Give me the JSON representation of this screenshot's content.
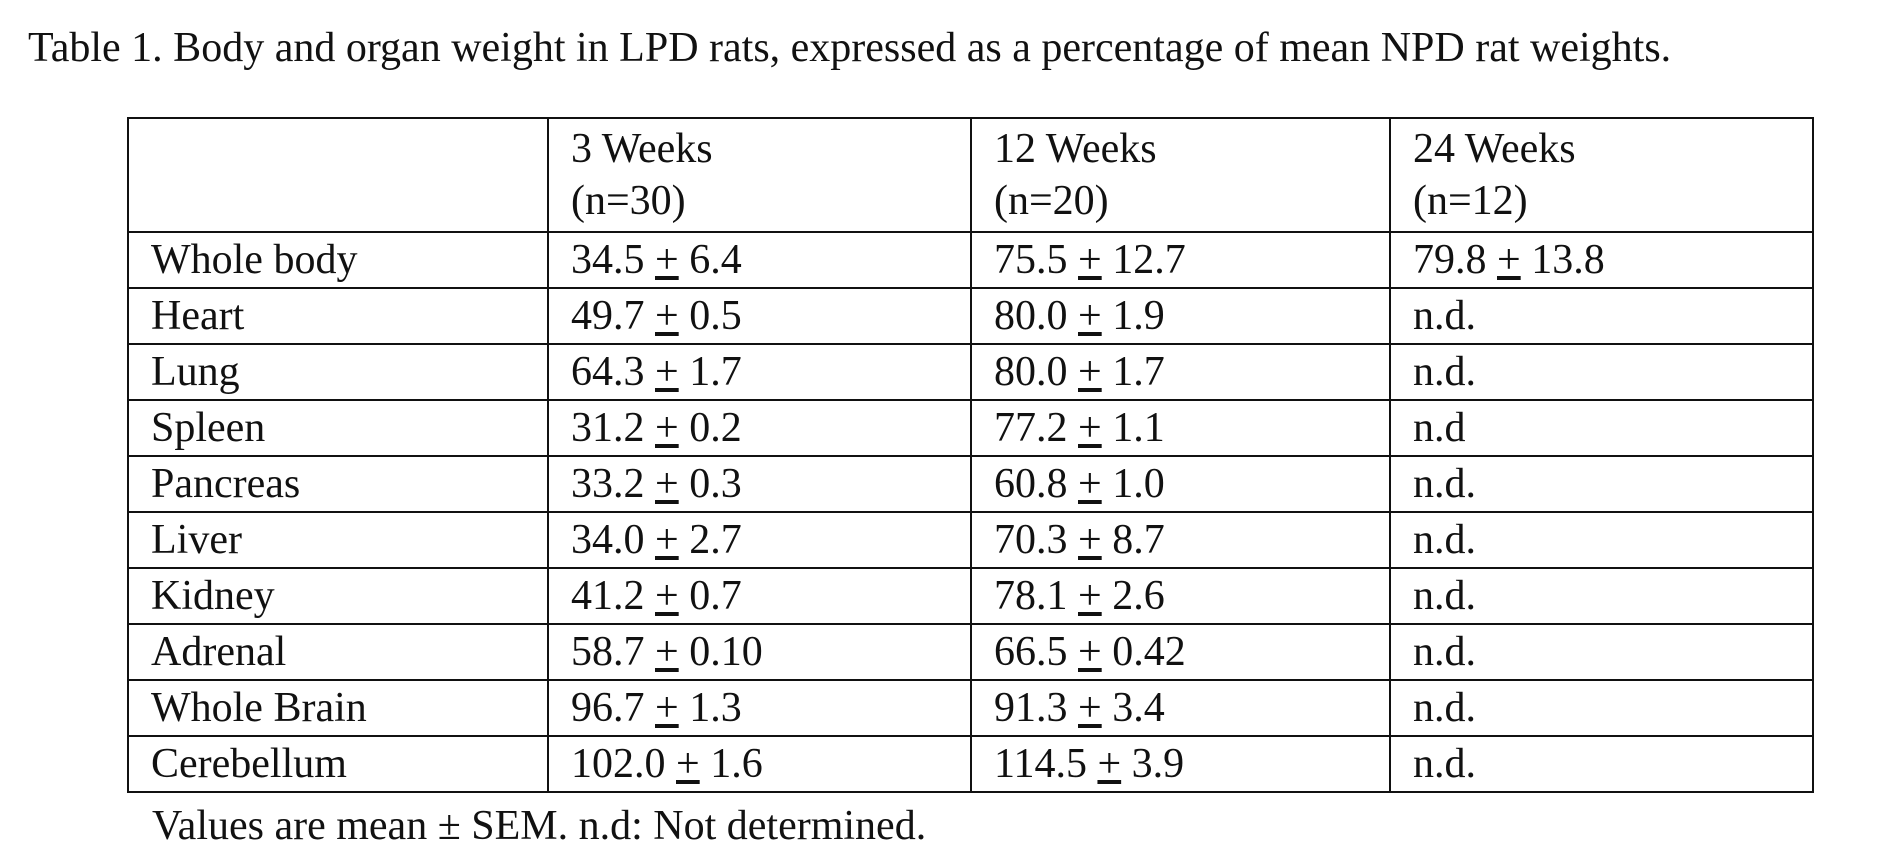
{
  "caption": "Table 1. Body and organ weight in LPD rats, expressed as a percentage of mean NPD rat weights.",
  "pm_symbol": "+",
  "columns": [
    {
      "label": "3 Weeks",
      "n": "(n=30)"
    },
    {
      "label": "12 Weeks",
      "n": "(n=20)"
    },
    {
      "label": "24 Weeks",
      "n": "(n=12)"
    }
  ],
  "rows": [
    {
      "label": "Whole body",
      "cells": [
        {
          "mean": "34.5",
          "sem": "6.4"
        },
        {
          "mean": "75.5",
          "sem": "12.7"
        },
        {
          "mean": "79.8",
          "sem": "13.8"
        }
      ]
    },
    {
      "label": "Heart",
      "cells": [
        {
          "mean": "49.7",
          "sem": "0.5"
        },
        {
          "mean": "80.0",
          "sem": "1.9"
        },
        {
          "text": "n.d."
        }
      ]
    },
    {
      "label": "Lung",
      "cells": [
        {
          "mean": "64.3",
          "sem": "1.7"
        },
        {
          "mean": "80.0",
          "sem": "1.7"
        },
        {
          "text": "n.d."
        }
      ]
    },
    {
      "label": "Spleen",
      "cells": [
        {
          "mean": "31.2",
          "sem": "0.2"
        },
        {
          "mean": "77.2",
          "sem": "1.1"
        },
        {
          "text": "n.d"
        }
      ]
    },
    {
      "label": "Pancreas",
      "cells": [
        {
          "mean": "33.2",
          "sem": "0.3"
        },
        {
          "mean": "60.8",
          "sem": "1.0"
        },
        {
          "text": "n.d."
        }
      ]
    },
    {
      "label": "Liver",
      "cells": [
        {
          "mean": "34.0",
          "sem": "2.7"
        },
        {
          "mean": "70.3",
          "sem": "8.7"
        },
        {
          "text": "n.d."
        }
      ]
    },
    {
      "label": "Kidney",
      "cells": [
        {
          "mean": "41.2",
          "sem": "0.7"
        },
        {
          "mean": "78.1",
          "sem": "2.6"
        },
        {
          "text": "n.d."
        }
      ]
    },
    {
      "label": "Adrenal",
      "cells": [
        {
          "mean": "58.7",
          "sem": "0.10"
        },
        {
          "mean": "66.5",
          "sem": "0.42"
        },
        {
          "text": "n.d."
        }
      ]
    },
    {
      "label": "Whole Brain",
      "cells": [
        {
          "mean": "96.7",
          "sem": "1.3"
        },
        {
          "mean": "91.3",
          "sem": "3.4"
        },
        {
          "text": "n.d."
        }
      ]
    },
    {
      "label": "Cerebellum",
      "cells": [
        {
          "mean": "102.0",
          "sem": "1.6"
        },
        {
          "mean": "114.5",
          "sem": "3.9"
        },
        {
          "text": "n.d."
        }
      ]
    }
  ],
  "footnote": "Values are mean ± SEM. n.d: Not determined."
}
